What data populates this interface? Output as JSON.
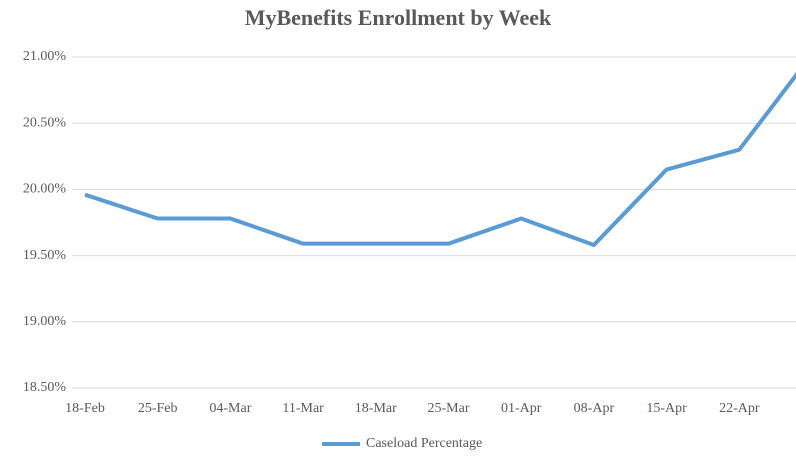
{
  "chart_data": {
    "type": "line",
    "title": "MyBenefits Enrollment by Week",
    "categories": [
      "18-Feb",
      "25-Feb",
      "04-Mar",
      "11-Mar",
      "18-Mar",
      "25-Mar",
      "01-Apr",
      "08-Apr",
      "15-Apr",
      "22-Apr",
      null
    ],
    "series": [
      {
        "name": "Caseload Percentage",
        "color": "#5b9bd5",
        "values": [
          19.96,
          19.78,
          19.78,
          19.59,
          19.59,
          19.59,
          19.78,
          19.58,
          20.15,
          20.3,
          21.02
        ]
      }
    ],
    "ylim": [
      18.5,
      21.0
    ],
    "yticks": [
      {
        "value": 18.5,
        "label": "18.50%"
      },
      {
        "value": 19.0,
        "label": "19.00%"
      },
      {
        "value": 19.5,
        "label": "19.50%"
      },
      {
        "value": 20.0,
        "label": "20.00%"
      },
      {
        "value": 20.5,
        "label": "20.50%"
      },
      {
        "value": 21.0,
        "label": "21.00%"
      }
    ],
    "grid": true,
    "legend": "bottom"
  }
}
